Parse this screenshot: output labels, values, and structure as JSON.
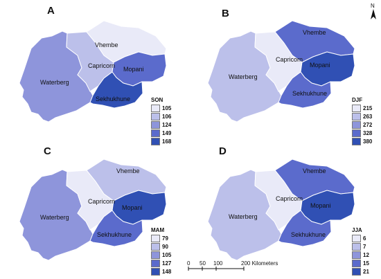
{
  "north_label": "N",
  "scale": {
    "ticks": [
      "0",
      "50",
      "100",
      "200 Kilometers"
    ]
  },
  "regions": [
    "Vhembe",
    "Capricorn",
    "Mopani",
    "Waterberg",
    "Sekhukhune"
  ],
  "panels": [
    {
      "letter": "A",
      "season": "SON",
      "legend": [
        {
          "value": "105",
          "color": "#e9eaf8"
        },
        {
          "value": "106",
          "color": "#bcc0ea"
        },
        {
          "value": "124",
          "color": "#8e95db"
        },
        {
          "value": "149",
          "color": "#5b6bcc"
        },
        {
          "value": "168",
          "color": "#3050b4"
        }
      ],
      "region_class": {
        "Vhembe": 0,
        "Capricorn": 1,
        "Mopani": 3,
        "Waterberg": 2,
        "Sekhukhune": 4
      }
    },
    {
      "letter": "B",
      "season": "DJF",
      "legend": [
        {
          "value": "215",
          "color": "#e9eaf8"
        },
        {
          "value": "263",
          "color": "#bcc0ea"
        },
        {
          "value": "272",
          "color": "#8e95db"
        },
        {
          "value": "328",
          "color": "#5b6bcc"
        },
        {
          "value": "380",
          "color": "#3050b4"
        }
      ],
      "region_class": {
        "Vhembe": 3,
        "Capricorn": 0,
        "Mopani": 4,
        "Waterberg": 1,
        "Sekhukhune": 3
      }
    },
    {
      "letter": "C",
      "season": "MAM",
      "legend": [
        {
          "value": "79",
          "color": "#e9eaf8"
        },
        {
          "value": "90",
          "color": "#bcc0ea"
        },
        {
          "value": "105",
          "color": "#8e95db"
        },
        {
          "value": "127",
          "color": "#5b6bcc"
        },
        {
          "value": "148",
          "color": "#3050b4"
        }
      ],
      "region_class": {
        "Vhembe": 1,
        "Capricorn": 0,
        "Mopani": 4,
        "Waterberg": 2,
        "Sekhukhune": 3
      }
    },
    {
      "letter": "D",
      "season": "JJA",
      "legend": [
        {
          "value": "6",
          "color": "#e9eaf8"
        },
        {
          "value": "7",
          "color": "#bcc0ea"
        },
        {
          "value": "12",
          "color": "#8e95db"
        },
        {
          "value": "15",
          "color": "#5b6bcc"
        },
        {
          "value": "21",
          "color": "#3050b4"
        }
      ],
      "region_class": {
        "Vhembe": 3,
        "Capricorn": 0,
        "Mopani": 4,
        "Waterberg": 1,
        "Sekhukhune": 3
      }
    }
  ]
}
